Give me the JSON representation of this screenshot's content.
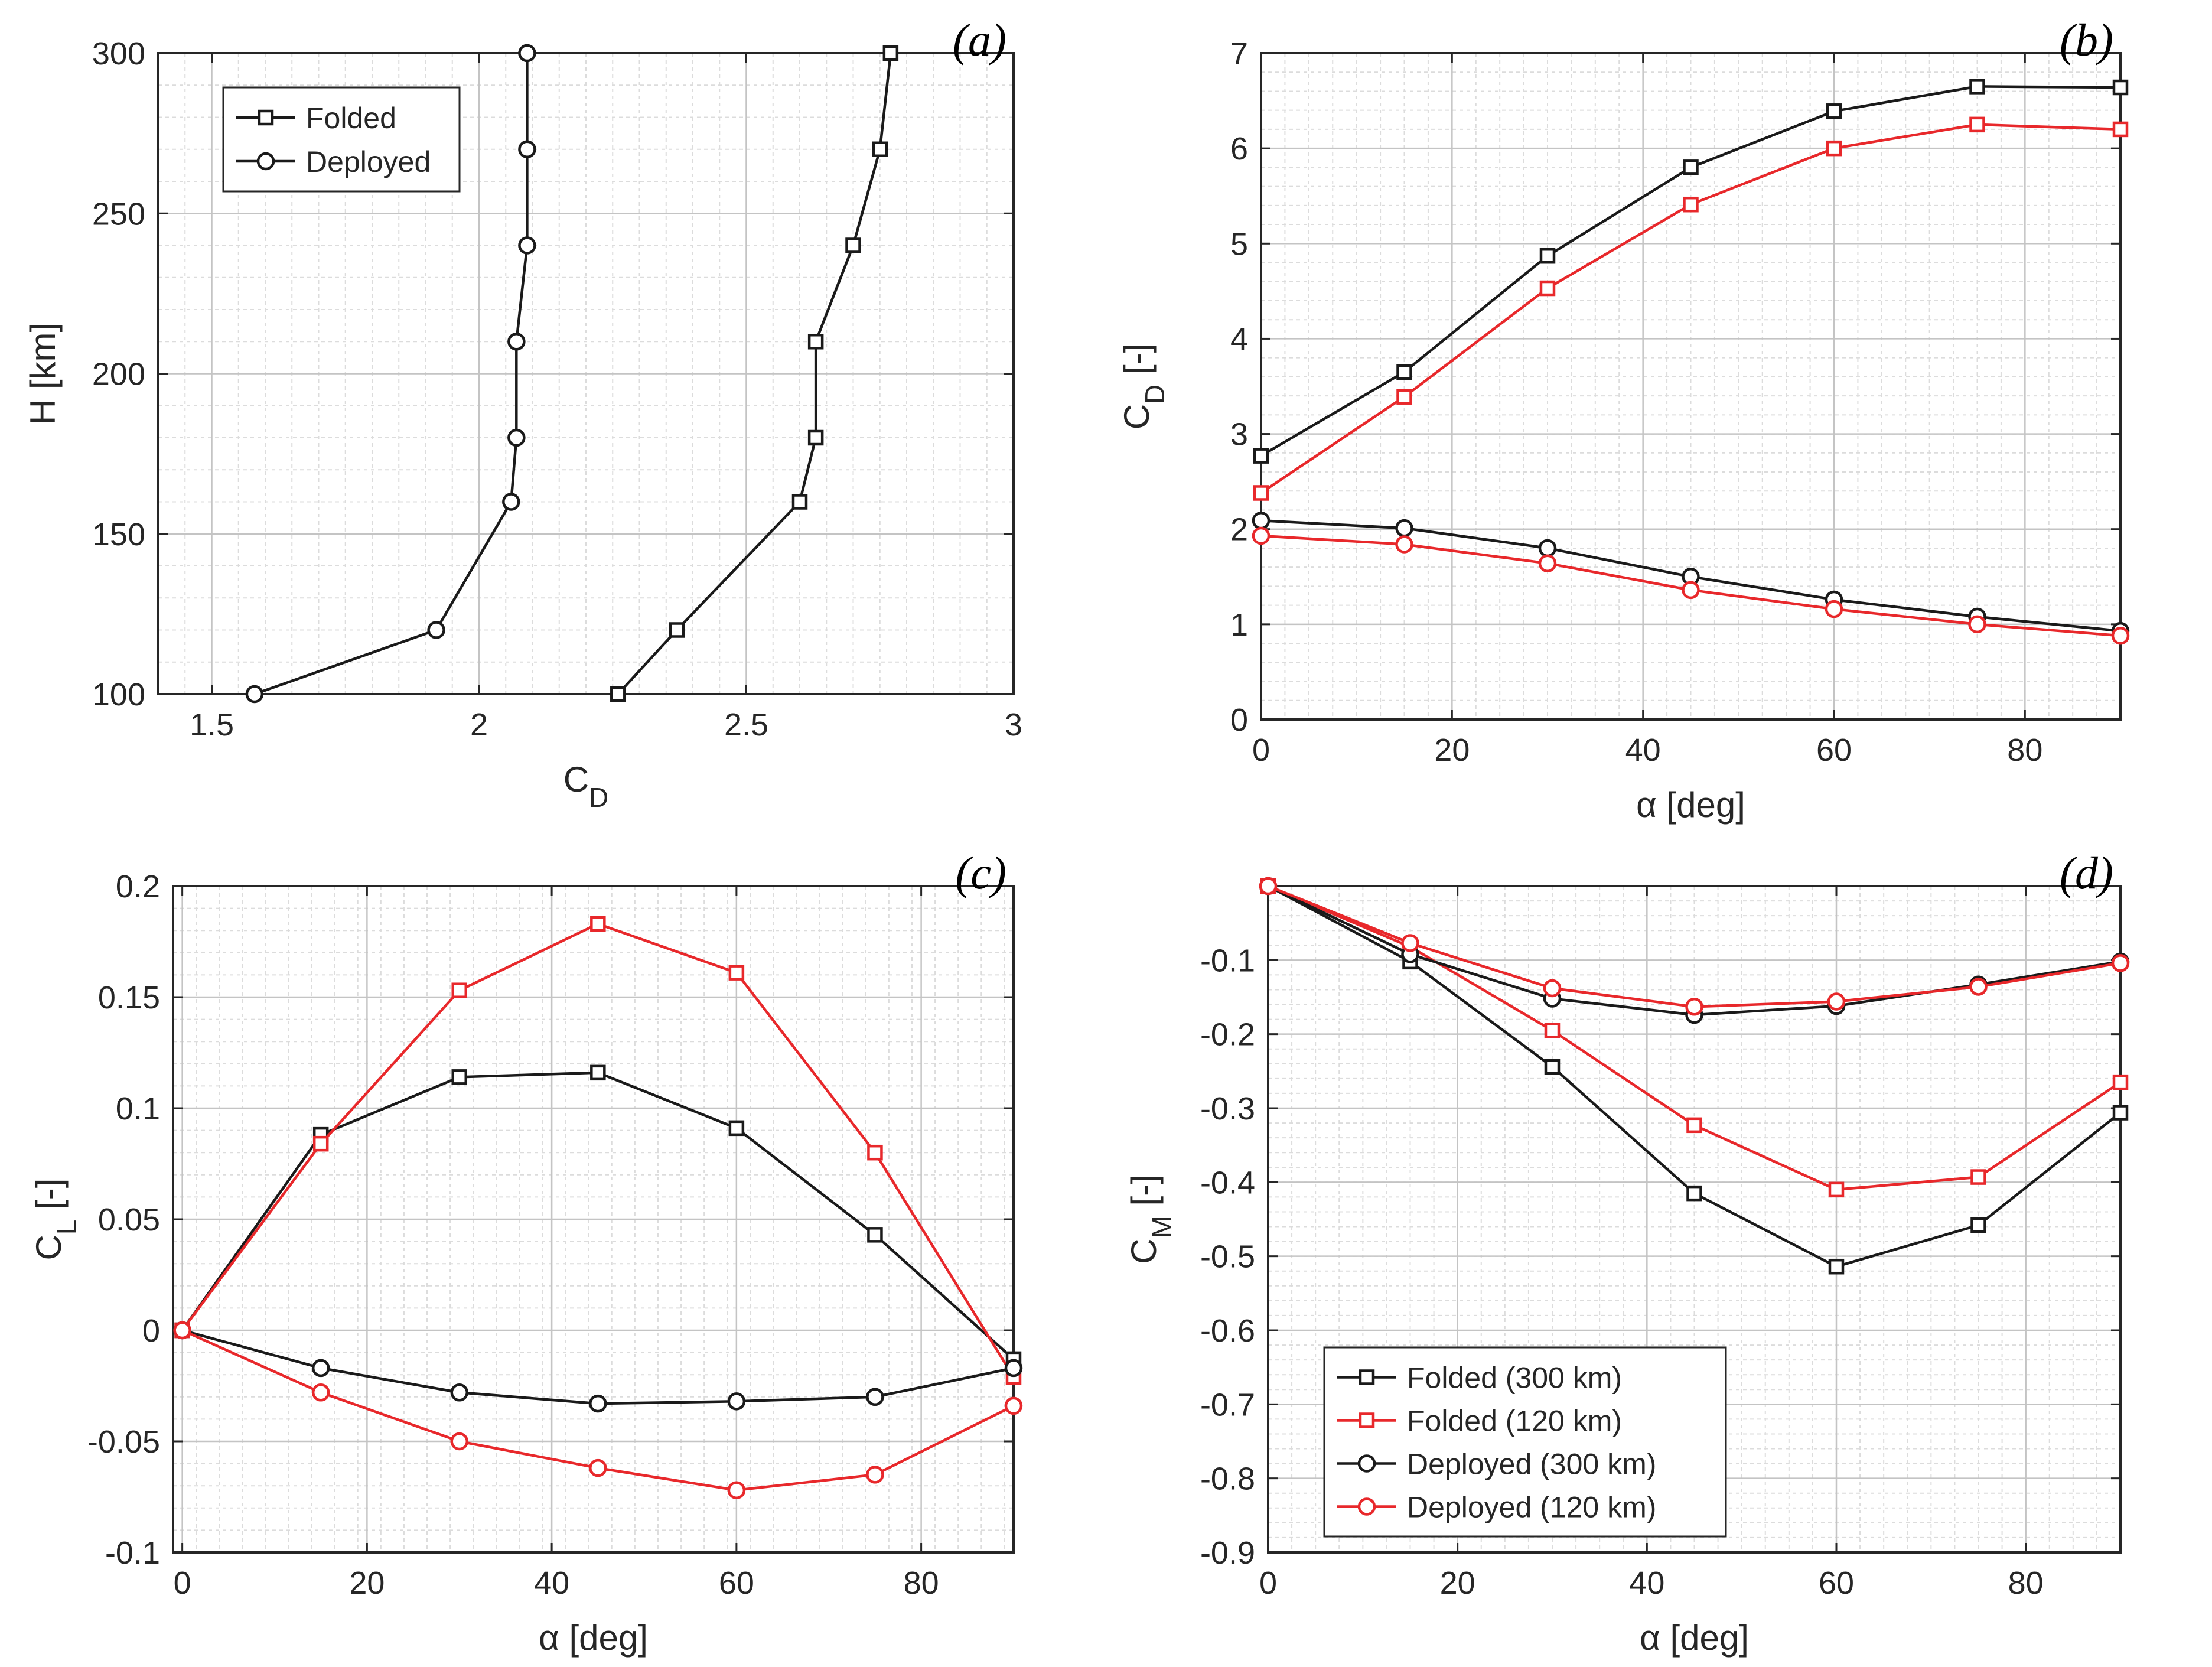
{
  "colors": {
    "black": "#1a1a1a",
    "red": "#e8282b",
    "grid_minor": "#dcdcdc",
    "grid_major": "#c4c4c4",
    "axis": "#262626"
  },
  "chart_data": [
    {
      "id": "a",
      "type": "line",
      "panel_tag": "(a)",
      "xlabel": "C",
      "xlabel_sub": "D",
      "ylabel": "H [km]",
      "ylabel_sub": "",
      "xlim": [
        1.4,
        3.0
      ],
      "ylim": [
        100,
        300
      ],
      "xticks": [
        1.5,
        2,
        2.5,
        3
      ],
      "xtick_labels": [
        "1.5",
        "2",
        "2.5",
        "3"
      ],
      "yticks": [
        100,
        150,
        200,
        250,
        300
      ],
      "ytick_labels": [
        "100",
        "150",
        "200",
        "250",
        "300"
      ],
      "xminor": 0.05,
      "yminor": 10,
      "legend_position": "top-left",
      "series": [
        {
          "name": "Folded",
          "marker": "square",
          "color": "black",
          "legend": true,
          "x": [
            2.26,
            2.37,
            2.6,
            2.63,
            2.63,
            2.7,
            2.75,
            2.77
          ],
          "y": [
            100,
            120,
            160,
            180,
            210,
            240,
            270,
            300
          ]
        },
        {
          "name": "Deployed",
          "marker": "circle",
          "color": "black",
          "legend": true,
          "x": [
            1.58,
            1.92,
            2.06,
            2.07,
            2.07,
            2.09,
            2.09,
            2.09
          ],
          "y": [
            100,
            120,
            160,
            180,
            210,
            240,
            270,
            300
          ]
        }
      ]
    },
    {
      "id": "b",
      "type": "line",
      "panel_tag": "(b)",
      "xlabel": "α [deg]",
      "xlabel_sub": "",
      "ylabel": "C",
      "ylabel_sub": "D",
      "ylabel_suffix": " [-]",
      "xlim": [
        0,
        90
      ],
      "ylim": [
        0,
        7
      ],
      "xticks": [
        0,
        20,
        40,
        60,
        80
      ],
      "xtick_labels": [
        "0",
        "20",
        "40",
        "60",
        "80"
      ],
      "yticks": [
        0,
        1,
        2,
        3,
        4,
        5,
        6,
        7
      ],
      "ytick_labels": [
        "0",
        "1",
        "2",
        "3",
        "4",
        "5",
        "6",
        "7"
      ],
      "xminor": 2.5,
      "yminor": 0.2,
      "series": [
        {
          "name": "Folded (300 km)",
          "marker": "square",
          "color": "black",
          "x": [
            0,
            15,
            30,
            45,
            60,
            75,
            90
          ],
          "y": [
            2.77,
            3.65,
            4.87,
            5.8,
            6.39,
            6.65,
            6.64
          ]
        },
        {
          "name": "Folded (120 km)",
          "marker": "square",
          "color": "red",
          "x": [
            0,
            15,
            30,
            45,
            60,
            75,
            90
          ],
          "y": [
            2.38,
            3.39,
            4.53,
            5.41,
            6.0,
            6.25,
            6.2
          ]
        },
        {
          "name": "Deployed (300 km)",
          "marker": "circle",
          "color": "black",
          "x": [
            0,
            15,
            30,
            45,
            60,
            75,
            90
          ],
          "y": [
            2.09,
            2.01,
            1.8,
            1.5,
            1.26,
            1.08,
            0.93
          ]
        },
        {
          "name": "Deployed (120 km)",
          "marker": "circle",
          "color": "red",
          "x": [
            0,
            15,
            30,
            45,
            60,
            75,
            90
          ],
          "y": [
            1.93,
            1.84,
            1.64,
            1.36,
            1.16,
            1.0,
            0.88
          ]
        }
      ]
    },
    {
      "id": "c",
      "type": "line",
      "panel_tag": "(c)",
      "xlabel": "α [deg]",
      "xlabel_sub": "",
      "ylabel": "C",
      "ylabel_sub": "L",
      "ylabel_suffix": " [-]",
      "xlim": [
        -1,
        90
      ],
      "ylim": [
        -0.1,
        0.2
      ],
      "xticks": [
        0,
        20,
        40,
        60,
        80
      ],
      "xtick_labels": [
        "0",
        "20",
        "40",
        "60",
        "80"
      ],
      "yticks": [
        -0.1,
        -0.05,
        0,
        0.05,
        0.1,
        0.15,
        0.2
      ],
      "ytick_labels": [
        "-0.1",
        "-0.05",
        "0",
        "0.05",
        "0.1",
        "0.15",
        "0.2"
      ],
      "xminor": 2.5,
      "yminor": 0.01,
      "series": [
        {
          "name": "Folded (300 km)",
          "marker": "square",
          "color": "black",
          "x": [
            0,
            15,
            30,
            45,
            60,
            75,
            90
          ],
          "y": [
            0,
            0.088,
            0.114,
            0.116,
            0.091,
            0.043,
            -0.013
          ]
        },
        {
          "name": "Folded (120 km)",
          "marker": "square",
          "color": "red",
          "x": [
            0,
            15,
            30,
            45,
            60,
            75,
            90
          ],
          "y": [
            0,
            0.084,
            0.153,
            0.183,
            0.161,
            0.08,
            -0.021
          ]
        },
        {
          "name": "Deployed (300 km)",
          "marker": "circle",
          "color": "black",
          "x": [
            0,
            15,
            30,
            45,
            60,
            75,
            90
          ],
          "y": [
            0,
            -0.017,
            -0.028,
            -0.033,
            -0.032,
            -0.03,
            -0.017
          ]
        },
        {
          "name": "Deployed (120 km)",
          "marker": "circle",
          "color": "red",
          "x": [
            0,
            15,
            30,
            45,
            60,
            75,
            90
          ],
          "y": [
            0,
            -0.028,
            -0.05,
            -0.062,
            -0.072,
            -0.065,
            -0.034
          ]
        }
      ]
    },
    {
      "id": "d",
      "type": "line",
      "panel_tag": "(d)",
      "xlabel": "α [deg]",
      "xlabel_sub": "",
      "ylabel": "C",
      "ylabel_sub": "M",
      "ylabel_suffix": " [-]",
      "xlim": [
        0,
        90
      ],
      "ylim": [
        -0.9,
        0
      ],
      "xticks": [
        0,
        20,
        40,
        60,
        80
      ],
      "xtick_labels": [
        "0",
        "20",
        "40",
        "60",
        "80"
      ],
      "yticks": [
        -0.9,
        -0.8,
        -0.7,
        -0.6,
        -0.5,
        -0.4,
        -0.3,
        -0.2,
        -0.1
      ],
      "ytick_labels": [
        "-0.9",
        "-0.8",
        "-0.7",
        "-0.6",
        "-0.5",
        "-0.4",
        "-0.3",
        "-0.2",
        "-0.1"
      ],
      "xminor": 2.5,
      "yminor": 0.02,
      "legend_position": "bottom-left",
      "series": [
        {
          "name": "Folded  (300 km)",
          "marker": "square",
          "color": "black",
          "legend": true,
          "x": [
            0,
            15,
            30,
            45,
            60,
            75,
            90
          ],
          "y": [
            0,
            -0.102,
            -0.244,
            -0.415,
            -0.514,
            -0.458,
            -0.306
          ]
        },
        {
          "name": "Folded  (120 km)",
          "marker": "square",
          "color": "red",
          "legend": true,
          "x": [
            0,
            15,
            30,
            45,
            60,
            75,
            90
          ],
          "y": [
            0,
            -0.082,
            -0.195,
            -0.323,
            -0.41,
            -0.393,
            -0.265
          ]
        },
        {
          "name": "Deployed  (300 km)",
          "marker": "circle",
          "color": "black",
          "legend": true,
          "x": [
            0,
            15,
            30,
            45,
            60,
            75,
            90
          ],
          "y": [
            0,
            -0.092,
            -0.152,
            -0.174,
            -0.162,
            -0.133,
            -0.102
          ]
        },
        {
          "name": "Deployed  (120 km)",
          "marker": "circle",
          "color": "red",
          "legend": true,
          "x": [
            0,
            15,
            30,
            45,
            60,
            75,
            90
          ],
          "y": [
            0,
            -0.077,
            -0.138,
            -0.163,
            -0.156,
            -0.136,
            -0.104
          ]
        }
      ]
    }
  ]
}
